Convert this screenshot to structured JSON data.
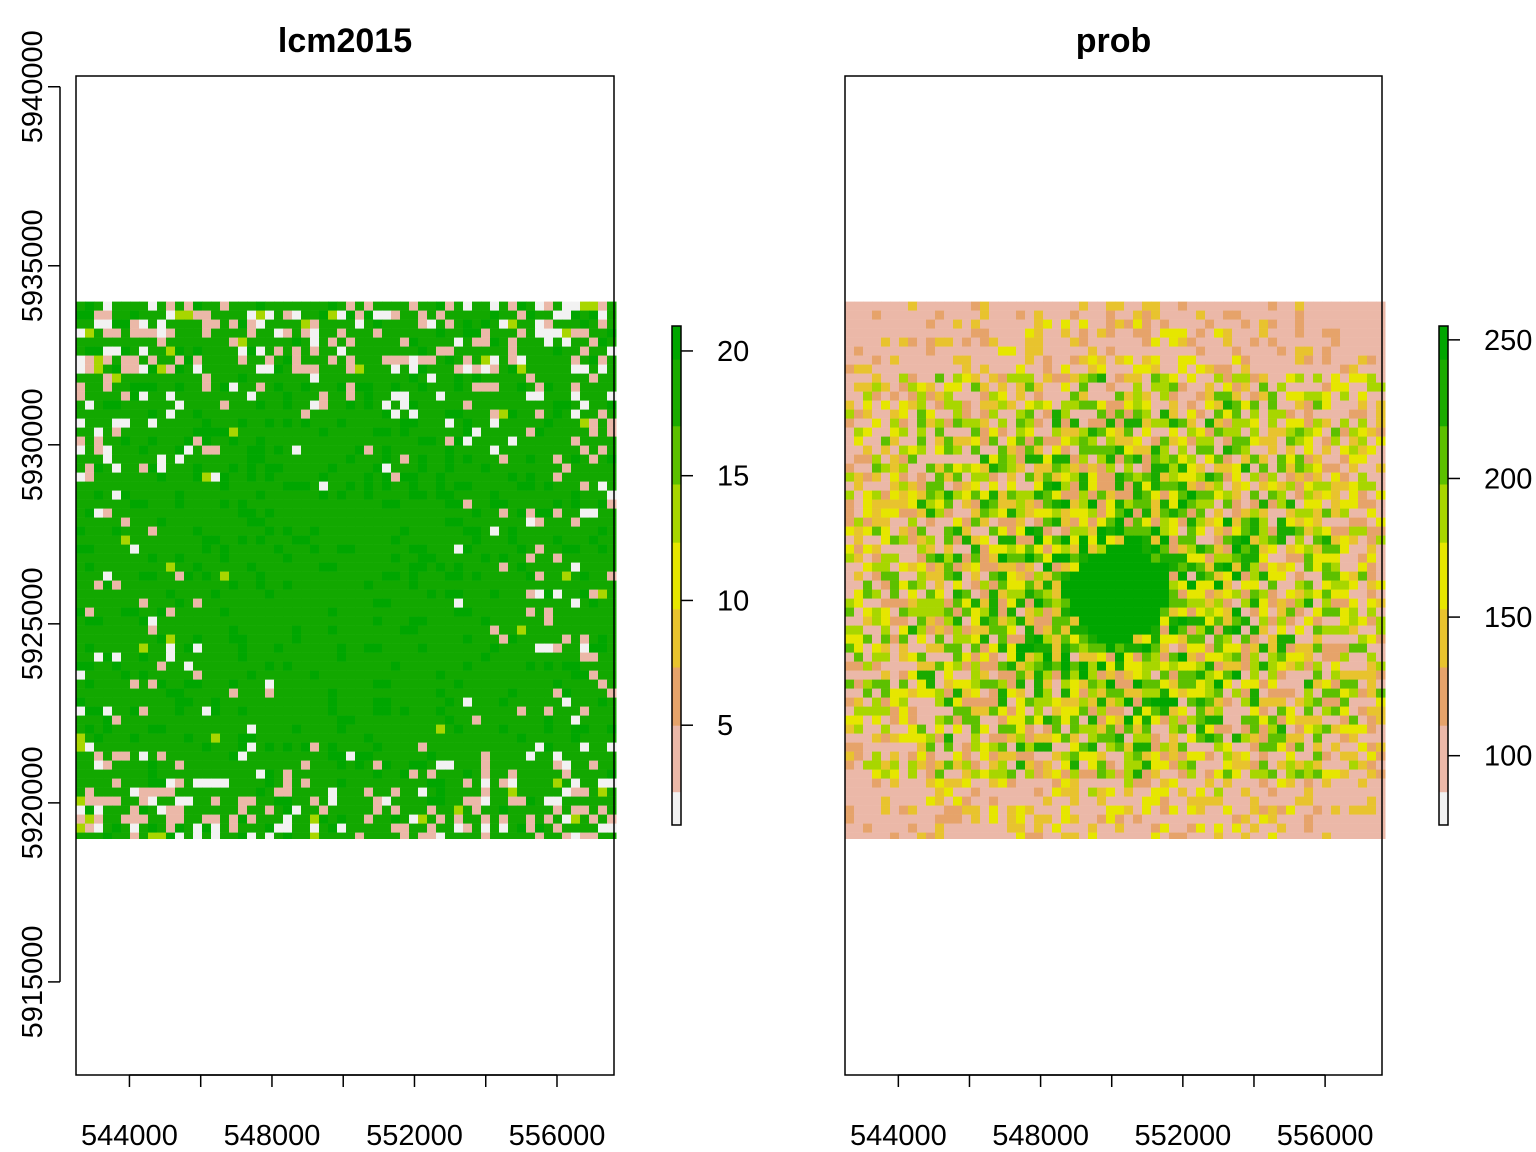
{
  "panels": [
    {
      "id": "lcm2015",
      "title": "lcm2015",
      "legend_ticks": [
        "5",
        "10",
        "15",
        "20"
      ],
      "legend_values": [
        5,
        10,
        15,
        20
      ],
      "legend_range": [
        1,
        21
      ],
      "show_y_axis": true
    },
    {
      "id": "prob",
      "title": "prob",
      "legend_ticks": [
        "100",
        "150",
        "200",
        "250"
      ],
      "legend_values": [
        100,
        150,
        200,
        250
      ],
      "legend_range": [
        75,
        255
      ],
      "show_y_axis": false
    }
  ],
  "x_axis": {
    "ticks": [
      544000,
      546000,
      548000,
      550000,
      552000,
      554000,
      556000
    ],
    "labels": [
      "544000",
      "548000",
      "552000",
      "556000"
    ],
    "label_values": [
      544000,
      548000,
      552000,
      556000
    ],
    "range": [
      542500,
      557600
    ]
  },
  "y_axis": {
    "ticks": [
      5915000,
      5920000,
      5925000,
      5930000,
      5935000,
      5940000
    ],
    "labels": [
      "5915000",
      "5920000",
      "5925000",
      "5930000",
      "5935000",
      "5940000"
    ],
    "range": [
      5912400,
      5940300
    ]
  },
  "raster_extent": {
    "y_min": 5919000,
    "y_max": 5934000
  },
  "colors": {
    "palette": [
      "#f2f2f2",
      "#ebb8a8",
      "#e6a36a",
      "#e8c32e",
      "#e6e600",
      "#a8d600",
      "#5cc000",
      "#1aab00",
      "#00a600"
    ],
    "lcm_dominant": "#12a800",
    "frame": "#000000"
  }
}
